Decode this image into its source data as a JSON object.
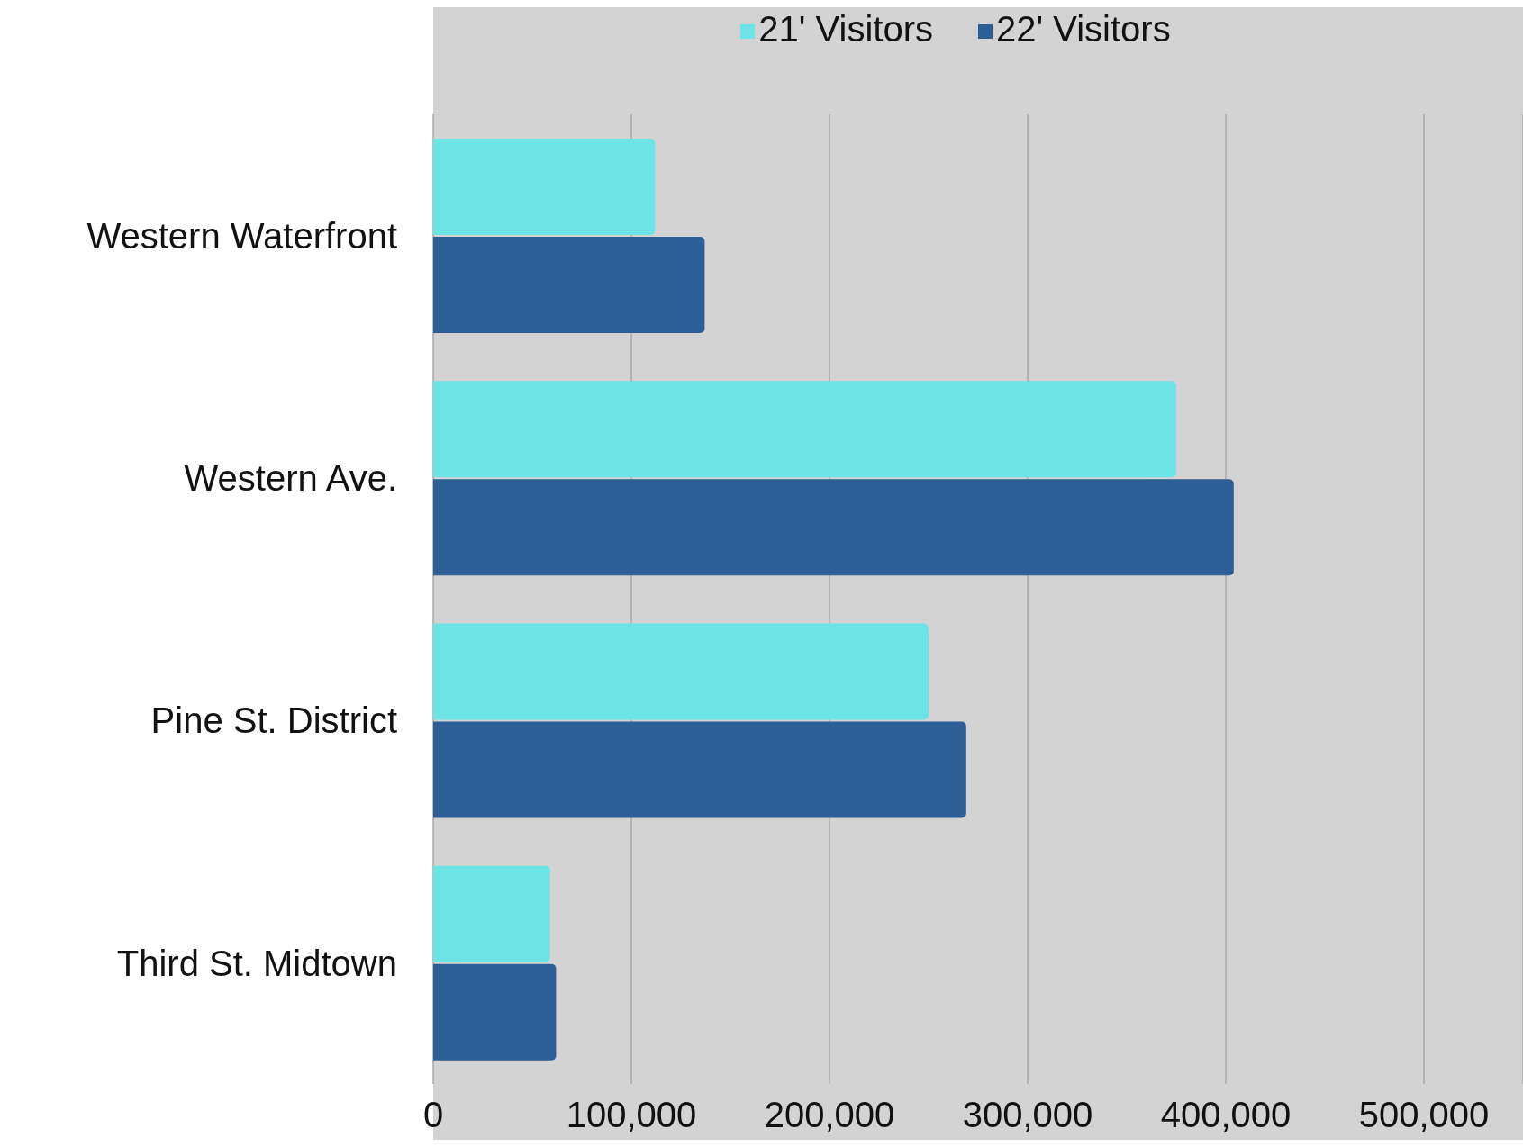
{
  "chart_data": {
    "type": "bar",
    "orientation": "horizontal",
    "categories": [
      "Western Waterfront",
      "Western Ave.",
      "Pine St. District",
      "Third St. Midtown"
    ],
    "series": [
      {
        "name": "21' Visitors",
        "color": "#6ce3e5",
        "values": [
          112000,
          375000,
          250000,
          59000
        ]
      },
      {
        "name": "22' Visitors",
        "color": "#2d5e96",
        "values": [
          137000,
          404000,
          269000,
          62000
        ]
      }
    ],
    "xlim": [
      0,
      550000
    ],
    "xticks": [
      {
        "value": 0,
        "label": "0"
      },
      {
        "value": 100000,
        "label": "100,000"
      },
      {
        "value": 200000,
        "label": "200,000"
      },
      {
        "value": 300000,
        "label": "300,000"
      },
      {
        "value": 400000,
        "label": "400,000"
      },
      {
        "value": 500000,
        "label": "500,000"
      }
    ],
    "grid": "x",
    "legend": "top"
  }
}
